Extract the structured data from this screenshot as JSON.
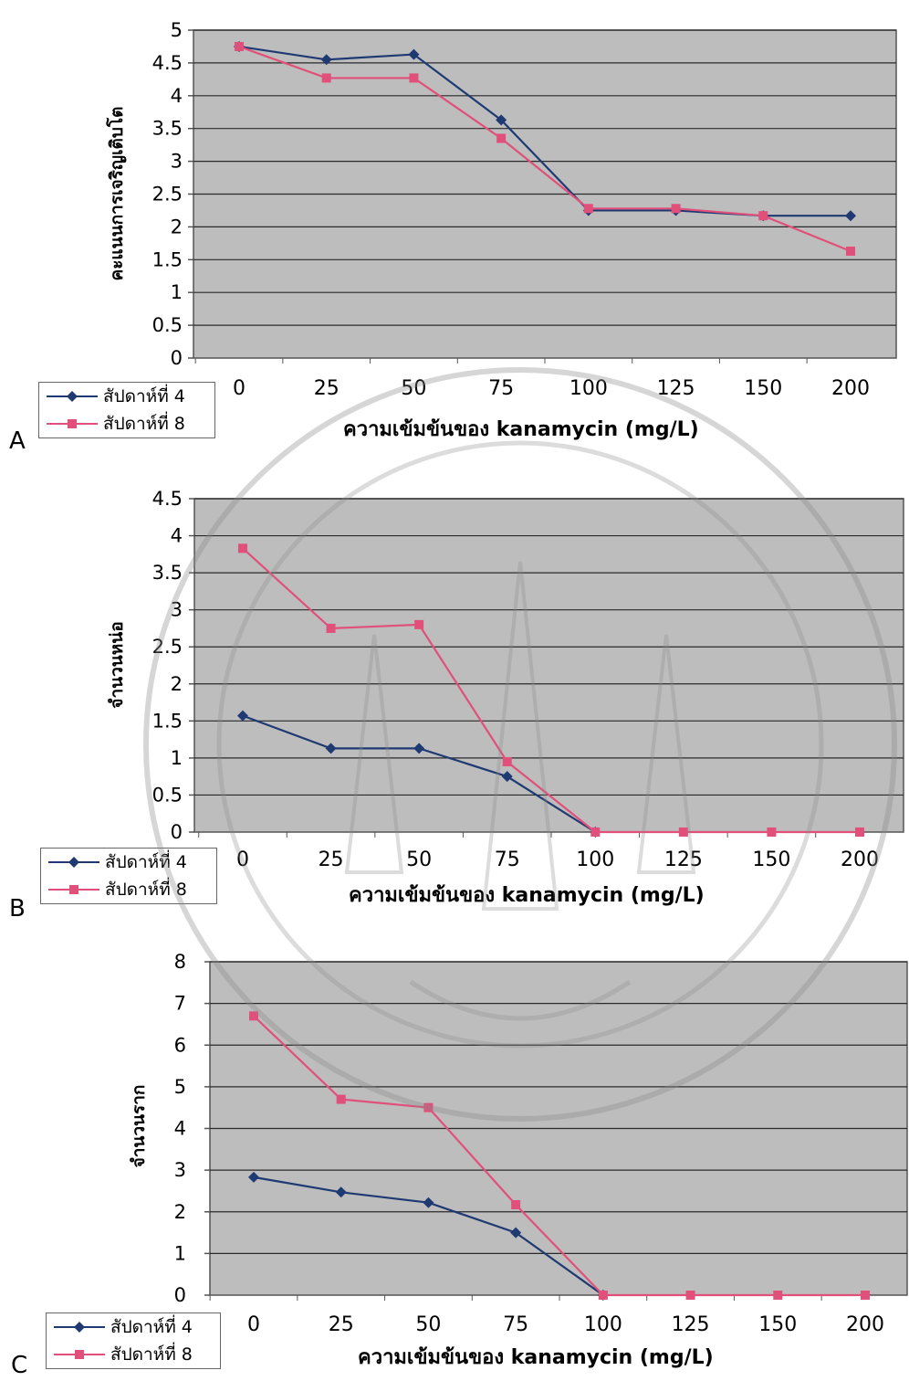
{
  "chart_data": [
    {
      "panel_letter": "A",
      "type": "line",
      "categories": [
        "0",
        "25",
        "50",
        "75",
        "100",
        "125",
        "150",
        "200"
      ],
      "ylabel": "คะแนนการเจริญเติบโต",
      "xlabel": "ความเข้มข้นของ kanamycin (mg/L)",
      "ylim": [
        0,
        5
      ],
      "yticks": [
        "0",
        "0.5",
        "1",
        "1.5",
        "2",
        "2.5",
        "3",
        "3.5",
        "4",
        "4.5",
        "5"
      ],
      "grid": true,
      "legend_position": "bottom-left",
      "series": [
        {
          "name": "สัปดาห์ที่ 4",
          "color": "#1f3a73",
          "marker": "diamond",
          "values": [
            4.75,
            4.55,
            4.63,
            3.63,
            2.25,
            2.25,
            2.17,
            2.17
          ]
        },
        {
          "name": "สัปดาห์ที่ 8",
          "color": "#e0507a",
          "marker": "square",
          "values": [
            4.75,
            4.27,
            4.27,
            3.35,
            2.28,
            2.28,
            2.17,
            1.63
          ]
        }
      ]
    },
    {
      "panel_letter": "B",
      "type": "line",
      "categories": [
        "0",
        "25",
        "50",
        "75",
        "100",
        "125",
        "150",
        "200"
      ],
      "ylabel": "จำนวนหน่อ",
      "xlabel": "ความเข้มข้นของ kanamycin (mg/L)",
      "ylim": [
        0,
        4.5
      ],
      "yticks": [
        "0",
        "0.5",
        "1",
        "1.5",
        "2",
        "2.5",
        "3",
        "3.5",
        "4",
        "4.5"
      ],
      "grid": true,
      "legend_position": "bottom-left",
      "series": [
        {
          "name": "สัปดาห์ที่ 4",
          "color": "#1f3a73",
          "marker": "diamond",
          "values": [
            1.57,
            1.13,
            1.13,
            0.75,
            0,
            null,
            null,
            null
          ]
        },
        {
          "name": "สัปดาห์ที่ 8",
          "color": "#e0507a",
          "marker": "square",
          "values": [
            3.83,
            2.75,
            2.8,
            0.95,
            0,
            0,
            0,
            0
          ]
        }
      ]
    },
    {
      "panel_letter": "C",
      "type": "line",
      "categories": [
        "0",
        "25",
        "50",
        "75",
        "100",
        "125",
        "150",
        "200"
      ],
      "ylabel": "จำนวนราก",
      "xlabel": "ความเข้มข้นของ kanamycin (mg/L)",
      "ylim": [
        0,
        8
      ],
      "yticks": [
        "0",
        "1",
        "2",
        "3",
        "4",
        "5",
        "6",
        "7",
        "8"
      ],
      "grid": true,
      "legend_position": "bottom-left",
      "series": [
        {
          "name": "สัปดาห์ที่ 4",
          "color": "#1f3a73",
          "marker": "diamond",
          "values": [
            2.83,
            2.47,
            2.22,
            1.5,
            0,
            null,
            null,
            null
          ]
        },
        {
          "name": "สัปดาห์ที่ 8",
          "color": "#e0507a",
          "marker": "square",
          "values": [
            6.7,
            4.7,
            4.5,
            2.17,
            0,
            0,
            0,
            0
          ]
        }
      ]
    }
  ],
  "style": {
    "plot_background": "#bdbdbd",
    "gridline_color": "#2a2a2a",
    "axis_color": "#555555",
    "watermark_color": "#8a8a8a"
  }
}
